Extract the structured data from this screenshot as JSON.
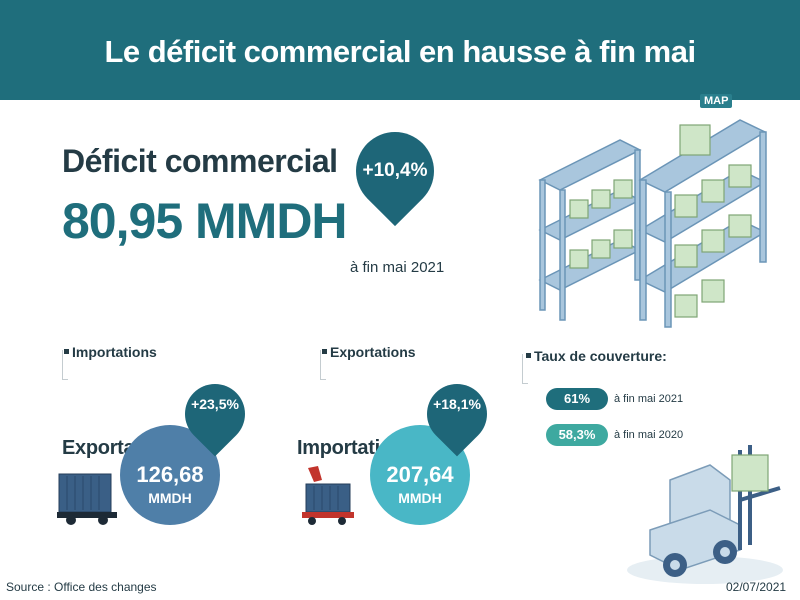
{
  "header": {
    "title": "Le déficit commercial en hausse à fin mai"
  },
  "logo": "MAP",
  "deficit": {
    "label": "Déficit commercial",
    "value": "80,95 MMDH",
    "change": "+10,4%",
    "period": "à fin mai 2021"
  },
  "imports": {
    "section_label": "Importations",
    "side_label": "Exportations",
    "value": "126,68",
    "unit": "MMDH",
    "change": "+23,5%"
  },
  "exports": {
    "section_label": "Exportations",
    "side_label": "Importations",
    "value": "207,64",
    "unit": "MMDH",
    "change": "+18,1%"
  },
  "coverage": {
    "section_label": "Taux de couverture:",
    "rows": [
      {
        "value": "61%",
        "period": "à fin mai 2021",
        "color": "#1f6e7c"
      },
      {
        "value": "58,3%",
        "period": "à fin mai 2020",
        "color": "#3ea9a0"
      }
    ]
  },
  "footer": {
    "source": "Source : Office des changes",
    "date": "02/07/2021"
  },
  "colors": {
    "header": "#1f6e7c",
    "dark_teal": "#1e6678",
    "light_teal": "#3ea9a0",
    "circle_blue": "#4f7fa8",
    "circle_cyan": "#49b7c6"
  }
}
